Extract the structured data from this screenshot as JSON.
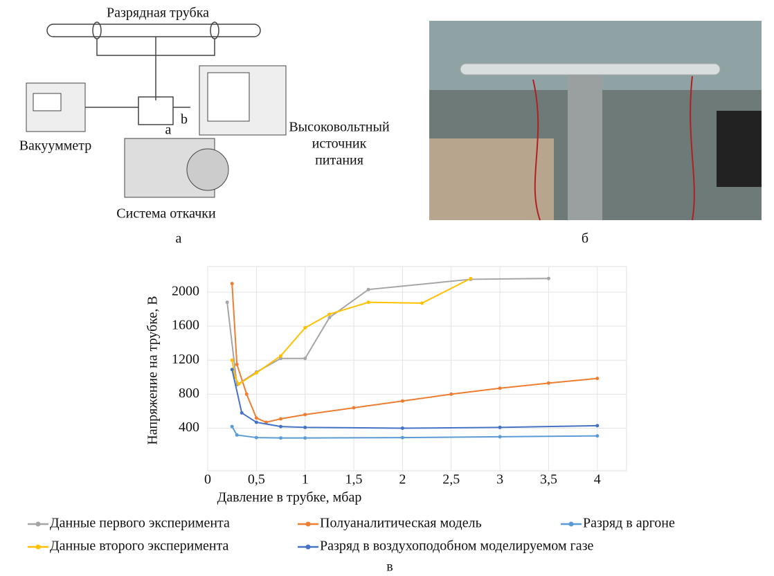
{
  "figure": {
    "diagram": {
      "tube_label": "Разрядная трубка",
      "gauge_label": "Вакуумметр",
      "port_a": "a",
      "port_b": "b",
      "supply_label": [
        "Высоковольтный",
        "источник",
        "питания"
      ],
      "pump_label": "Система откачки"
    },
    "panel_labels": [
      "а",
      "б",
      "в"
    ]
  },
  "chart_data": {
    "type": "line",
    "x_label": "Давление в трубке, мбар",
    "y_label": "Напряжение на трубке, В",
    "xlim": [
      0,
      4.3
    ],
    "ylim": [
      -100,
      2300
    ],
    "xticks": [
      0,
      {
        "value": 0.5,
        "label": "0,5"
      },
      1,
      {
        "value": 1.5,
        "label": "1,5"
      },
      2,
      {
        "value": 2.5,
        "label": "2,5"
      },
      3,
      {
        "value": 3.5,
        "label": "3,5"
      },
      4
    ],
    "yticks": [
      400,
      800,
      1200,
      1600,
      2000
    ],
    "grid": true,
    "series": [
      {
        "name": "Данные первого эксперимента",
        "color": "#a5a5a5",
        "x": [
          0.2,
          0.3,
          0.5,
          0.75,
          1.0,
          1.25,
          1.65,
          2.7,
          3.5
        ],
        "values": [
          1880,
          910,
          1060,
          1220,
          1220,
          1700,
          2030,
          2150,
          2160
        ]
      },
      {
        "name": "Полуаналитическая модель",
        "color": "#ed7d31",
        "x": [
          0.25,
          0.3,
          0.4,
          0.5,
          0.6,
          0.75,
          1.0,
          1.5,
          2.0,
          2.5,
          3.0,
          3.5,
          4.0
        ],
        "values": [
          2100,
          1150,
          800,
          520,
          470,
          510,
          560,
          640,
          720,
          800,
          870,
          930,
          985
        ]
      },
      {
        "name": "Разряд в аргоне",
        "color": "#5b9bd5",
        "x": [
          0.25,
          0.3,
          0.5,
          0.75,
          1.0,
          2.0,
          3.0,
          4.0
        ],
        "values": [
          420,
          320,
          290,
          285,
          285,
          290,
          300,
          310
        ]
      },
      {
        "name": "Данные второго эксперимента",
        "color": "#ffc000",
        "x": [
          0.25,
          0.28,
          0.32,
          0.5,
          0.75,
          1.0,
          1.25,
          1.65,
          2.2,
          2.7
        ],
        "values": [
          1200,
          1000,
          920,
          1050,
          1250,
          1580,
          1740,
          1880,
          1870,
          2160
        ]
      },
      {
        "name": "Разряд в воздухоподобном моделируемом газе",
        "color": "#4472c4",
        "x": [
          0.25,
          0.35,
          0.5,
          0.75,
          1.0,
          2.0,
          3.0,
          4.0
        ],
        "values": [
          1090,
          580,
          470,
          420,
          410,
          400,
          410,
          430
        ]
      }
    ]
  }
}
